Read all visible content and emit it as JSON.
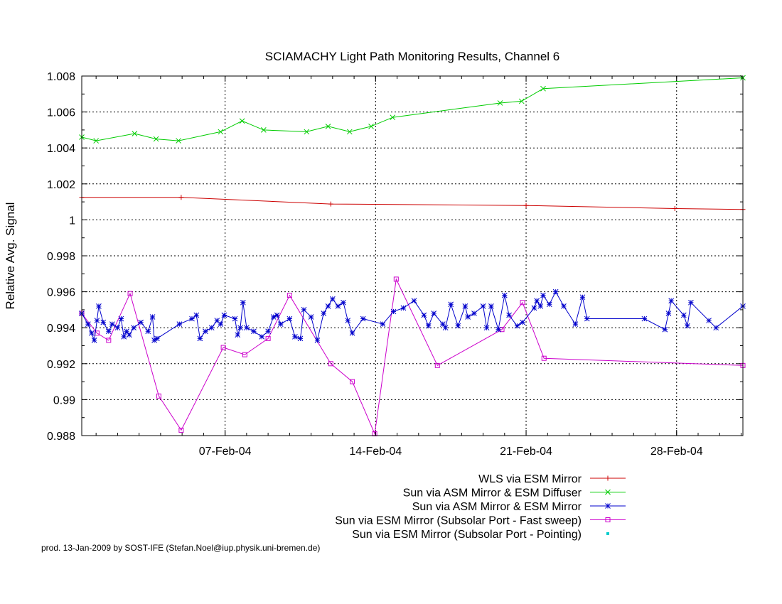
{
  "chart_data": {
    "type": "line",
    "title": "SCIAMACHY Light Path Monitoring Results, Channel 6",
    "ylabel": "Relative Avg. Signal",
    "xlabel": "",
    "x_unit": "date",
    "xlim": [
      "2004-01-31T08:00",
      "2004-03-02T02:00"
    ],
    "ylim": [
      0.988,
      1.008
    ],
    "yticks": [
      0.988,
      0.99,
      0.992,
      0.994,
      0.996,
      0.998,
      1,
      1.002,
      1.004,
      1.006,
      1.008
    ],
    "ytick_labels": [
      "0.988",
      "0.99",
      "0.992",
      "0.994",
      "0.996",
      "0.998",
      "1",
      "1.002",
      "1.004",
      "1.006",
      "1.008"
    ],
    "xticks": [
      "2004-02-07T00:00",
      "2004-02-14T00:00",
      "2004-02-21T00:00",
      "2004-02-28T00:00"
    ],
    "xtick_labels": [
      "07-Feb-04",
      "14-Feb-04",
      "21-Feb-04",
      "28-Feb-04"
    ],
    "grid": true,
    "legend_position": "bottom-right, below plot",
    "series": [
      {
        "name": "WLS via ESM Mirror",
        "color": "#cc0000",
        "marker": "plus",
        "x": [
          "2004-01-31T08:00",
          "2004-02-04T23:00",
          "2004-02-11T22:00",
          "2004-02-21T00:00",
          "2004-02-27T22:00",
          "2004-03-02T02:00"
        ],
        "y": [
          1.00125,
          1.00125,
          1.00088,
          1.0008,
          1.00063,
          1.00058
        ]
      },
      {
        "name": "Sun via ASM Mirror & ESM Diffuser",
        "color": "#00cc00",
        "marker": "cross",
        "x": [
          "2004-01-31T08:00",
          "2004-02-01T00:00",
          "2004-02-02T19:00",
          "2004-02-03T19:00",
          "2004-02-04T20:00",
          "2004-02-06T19:00",
          "2004-02-07T19:00",
          "2004-02-08T19:00",
          "2004-02-10T19:00",
          "2004-02-11T19:00",
          "2004-02-12T19:00",
          "2004-02-13T19:00",
          "2004-02-14T19:00",
          "2004-02-19T19:00",
          "2004-02-20T19:00",
          "2004-02-21T19:00",
          "2004-03-02T02:00"
        ],
        "y": [
          1.0046,
          1.0044,
          1.0048,
          1.0045,
          1.0044,
          1.0049,
          1.0055,
          1.005,
          1.0049,
          1.0052,
          1.0049,
          1.0052,
          1.0057,
          1.0065,
          1.0066,
          1.0073,
          1.0079
        ]
      },
      {
        "name": "Sun via ASM Mirror & ESM Mirror",
        "color": "#0000cc",
        "marker": "star",
        "x": [
          "2004-01-31T08:00",
          "2004-01-31T15:00",
          "2004-01-31T19:00",
          "2004-01-31T22:00",
          "2004-02-01T01:00",
          "2004-02-01T03:00",
          "2004-02-01T08:00",
          "2004-02-01T14:00",
          "2004-02-01T18:00",
          "2004-02-02T00:00",
          "2004-02-02T04:00",
          "2004-02-02T07:00",
          "2004-02-02T10:00",
          "2004-02-02T13:00",
          "2004-02-02T18:00",
          "2004-02-03T02:00",
          "2004-02-03T10:00",
          "2004-02-03T15:00",
          "2004-02-03T17:00",
          "2004-02-03T20:00",
          "2004-02-04T21:00",
          "2004-02-05T11:00",
          "2004-02-05T16:00",
          "2004-02-05T20:00",
          "2004-02-06T02:00",
          "2004-02-06T09:00",
          "2004-02-06T15:00",
          "2004-02-06T19:00",
          "2004-02-06T23:00",
          "2004-02-07T11:00",
          "2004-02-07T14:00",
          "2004-02-07T17:00",
          "2004-02-07T20:00",
          "2004-02-08T00:00",
          "2004-02-08T08:00",
          "2004-02-08T17:00",
          "2004-02-09T00:00",
          "2004-02-09T06:00",
          "2004-02-09T10:00",
          "2004-02-09T14:00",
          "2004-02-10T00:00",
          "2004-02-10T06:00",
          "2004-02-10T12:00",
          "2004-02-10T16:00",
          "2004-02-11T00:00",
          "2004-02-11T07:00",
          "2004-02-11T14:00",
          "2004-02-11T19:00",
          "2004-02-12T00:00",
          "2004-02-12T06:00",
          "2004-02-12T12:00",
          "2004-02-12T17:00",
          "2004-02-12T22:00",
          "2004-02-13T10:00",
          "2004-02-14T08:00",
          "2004-02-14T20:00",
          "2004-02-15T07:00",
          "2004-02-15T19:00",
          "2004-02-16T06:00",
          "2004-02-16T11:00",
          "2004-02-16T17:00",
          "2004-02-17T03:00",
          "2004-02-17T06:00",
          "2004-02-17T12:00",
          "2004-02-17T20:00",
          "2004-02-18T04:00",
          "2004-02-18T07:00",
          "2004-02-18T14:00",
          "2004-02-19T00:00",
          "2004-02-19T04:00",
          "2004-02-19T09:00",
          "2004-02-19T17:00",
          "2004-02-20T00:00",
          "2004-02-20T05:00",
          "2004-02-20T14:00",
          "2004-02-20T20:00",
          "2004-02-21T09:00",
          "2004-02-21T12:00",
          "2004-02-21T16:00",
          "2004-02-21T19:00",
          "2004-02-22T02:00",
          "2004-02-22T09:00",
          "2004-02-22T18:00",
          "2004-02-23T07:00",
          "2004-02-23T15:00",
          "2004-02-23T20:00",
          "2004-02-26T12:00",
          "2004-02-27T11:00",
          "2004-02-27T15:00",
          "2004-02-27T18:00",
          "2004-02-28T08:00",
          "2004-02-28T12:00",
          "2004-02-28T16:00",
          "2004-02-29T12:00",
          "2004-02-29T20:00",
          "2004-03-02T02:00"
        ],
        "y": [
          0.9948,
          0.9942,
          0.9937,
          0.9933,
          0.9944,
          0.9952,
          0.9943,
          0.9938,
          0.9942,
          0.994,
          0.9945,
          0.9935,
          0.9938,
          0.9936,
          0.994,
          0.9943,
          0.9938,
          0.9946,
          0.9933,
          0.9934,
          0.9942,
          0.9945,
          0.9947,
          0.9934,
          0.9938,
          0.994,
          0.9944,
          0.9942,
          0.9947,
          0.9945,
          0.9936,
          0.994,
          0.9954,
          0.994,
          0.9938,
          0.9935,
          0.9938,
          0.9946,
          0.9947,
          0.9942,
          0.9945,
          0.9935,
          0.9934,
          0.995,
          0.9946,
          0.9933,
          0.9948,
          0.9952,
          0.9956,
          0.9952,
          0.9954,
          0.9944,
          0.9937,
          0.9945,
          0.9942,
          0.9949,
          0.9951,
          0.9955,
          0.9947,
          0.9941,
          0.9948,
          0.9942,
          0.994,
          0.9953,
          0.9941,
          0.9952,
          0.9946,
          0.9948,
          0.9952,
          0.994,
          0.9952,
          0.9939,
          0.9958,
          0.9947,
          0.9941,
          0.9943,
          0.9951,
          0.9955,
          0.9952,
          0.9958,
          0.9953,
          0.996,
          0.9952,
          0.9942,
          0.9957,
          0.9945,
          0.9945,
          0.9939,
          0.9948,
          0.9955,
          0.9947,
          0.9941,
          0.9954,
          0.9944,
          0.994,
          0.9952
        ],
        "y_note": ""
      },
      {
        "name": "Sun via ESM Mirror (Subsolar Port - Fast sweep)",
        "color": "#cc00cc",
        "marker": "square",
        "x": [
          "2004-01-31T08:00",
          "2004-02-01T01:00",
          "2004-02-01T14:00",
          "2004-02-02T14:00",
          "2004-02-03T22:00",
          "2004-02-04T23:00",
          "2004-02-06T22:00",
          "2004-02-07T22:00",
          "2004-02-09T00:00",
          "2004-02-10T00:00",
          "2004-02-11T22:00",
          "2004-02-12T22:00",
          "2004-02-13T23:00",
          "2004-02-14T23:00",
          "2004-02-16T21:00",
          "2004-02-19T21:00",
          "2004-02-20T20:00",
          "2004-02-21T20:00",
          "2004-03-02T02:00"
        ],
        "y": [
          0.9948,
          0.9937,
          0.9933,
          0.9959,
          0.9902,
          0.9883,
          0.9929,
          0.9925,
          0.9934,
          0.9958,
          0.992,
          0.991,
          0.9881,
          0.9967,
          0.9919,
          0.9939,
          0.9954,
          0.9923,
          0.9919
        ]
      },
      {
        "name": "Sun via ESM Mirror (Subsolar Port - Pointing)",
        "color": "#00cccc",
        "marker": "dot",
        "x": [],
        "y": []
      }
    ]
  },
  "footer": "prod. 13-Jan-2009 by SOST-IFE (Stefan.Noel@iup.physik.uni-bremen.de)"
}
